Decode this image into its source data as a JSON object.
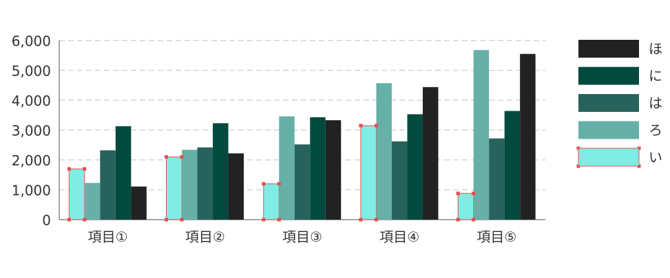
{
  "chart_data": {
    "type": "bar",
    "categories": [
      "項目①",
      "項目②",
      "項目③",
      "項目④",
      "項目⑤"
    ],
    "series": [
      {
        "name": "い",
        "color": "#7fede4",
        "selected": true,
        "values": [
          1700,
          2100,
          1200,
          3150,
          880
        ]
      },
      {
        "name": "ろ",
        "color": "#66b0a8",
        "values": [
          1230,
          2340,
          3460,
          4570,
          5680
        ]
      },
      {
        "name": "は",
        "color": "#28625c",
        "values": [
          2320,
          2420,
          2520,
          2620,
          2720
        ]
      },
      {
        "name": "に",
        "color": "#034a3e",
        "values": [
          3130,
          3230,
          3430,
          3530,
          3640
        ]
      },
      {
        "name": "ほ",
        "color": "#222222",
        "values": [
          1110,
          2220,
          3330,
          4440,
          5550
        ]
      }
    ],
    "y_ticks": [
      "0",
      "1,000",
      "2,000",
      "3,000",
      "4,000",
      "5,000",
      "6,000"
    ],
    "ylim": [
      0,
      6000
    ],
    "grid": true,
    "legend_position": "right",
    "selection_handle_color": "#e84c4c"
  }
}
